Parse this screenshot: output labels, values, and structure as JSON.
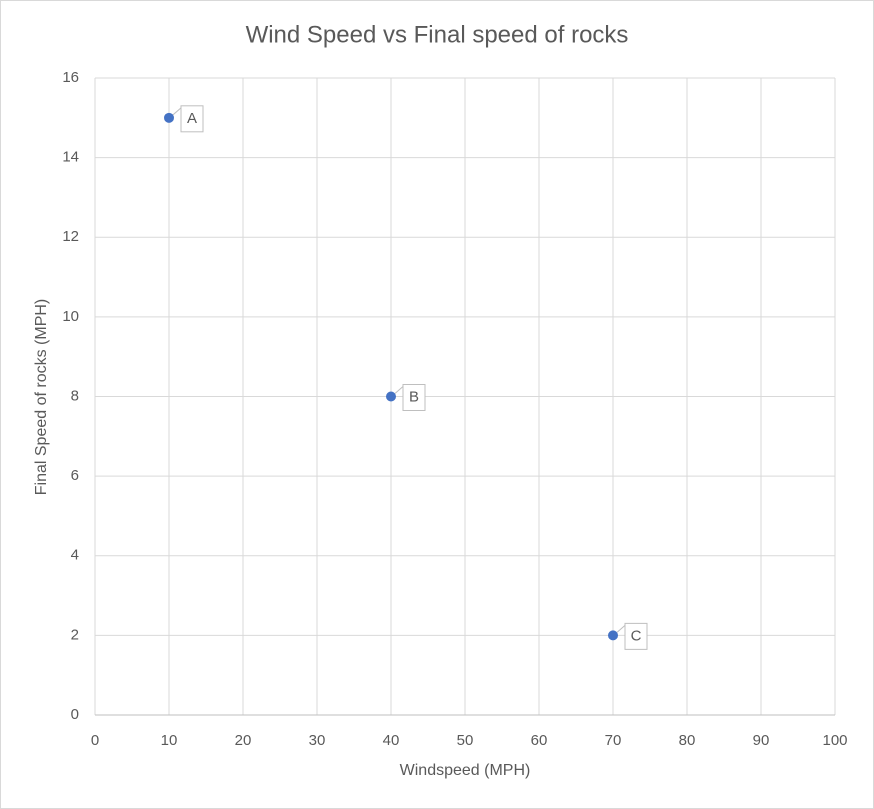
{
  "chart_data": {
    "type": "scatter",
    "title": "Wind Speed vs Final speed of rocks",
    "x_label": "Windspeed (MPH)",
    "y_label": "Final Speed of rocks (MPH)",
    "x": [
      10,
      40,
      70
    ],
    "values": [
      15,
      8,
      2
    ],
    "labels": [
      "A",
      "B",
      "C"
    ],
    "color": "#4472c4",
    "xlim": [
      0,
      100
    ],
    "xticks": [
      0,
      10,
      20,
      30,
      40,
      50,
      60,
      70,
      80,
      90,
      100
    ],
    "ylim": [
      0,
      16
    ],
    "yticks": [
      0,
      2,
      4,
      6,
      8,
      10,
      12,
      14,
      16
    ],
    "grid": true
  }
}
